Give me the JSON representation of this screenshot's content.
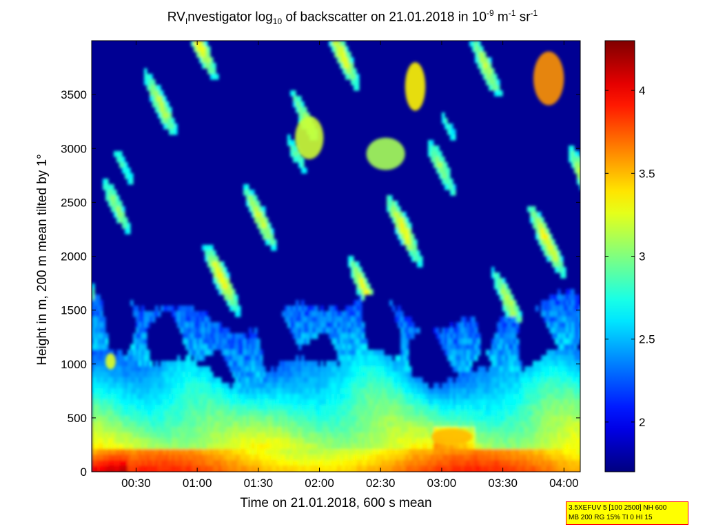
{
  "chart_data": {
    "type": "heatmap",
    "title": {
      "main": "RV",
      "sub1": "I",
      "part2": "nvestigator log",
      "sub2": "10",
      "part3": " of backscatter on 21.01.2018 in 10",
      "sup1": "-9",
      "part4": " m",
      "sup2": "-1",
      "part5": " sr",
      "sup3": "-1"
    },
    "xlabel": "Time on 21.01.2018, 600 s mean",
    "ylabel": "Height in m, 200 m mean tilted by 1°",
    "x_ticks": [
      "00:30",
      "01:00",
      "01:30",
      "02:00",
      "02:30",
      "03:00",
      "03:30",
      "04:00"
    ],
    "x_tick_minutes": [
      30,
      60,
      90,
      120,
      150,
      180,
      210,
      240
    ],
    "x_range_minutes": [
      8.2,
      248
    ],
    "y_ticks": [
      0,
      500,
      1000,
      1500,
      2000,
      2500,
      3000,
      3500
    ],
    "y_range": [
      0,
      4000
    ],
    "colorbar": {
      "ticks": [
        2,
        2.5,
        3,
        3.5,
        4
      ],
      "range": [
        1.7,
        4.3
      ],
      "colormap": "jet"
    },
    "layers": [
      {
        "name": "surface",
        "height_range": [
          0,
          250
        ],
        "value": 3.8
      },
      {
        "name": "boundary layer",
        "height_range": [
          250,
          1000
        ],
        "value": 2.9
      }
    ],
    "background_value": 1.75,
    "cloud_regions_minutes_height": [
      {
        "t": [
          162,
          172
        ],
        "h": [
          3350,
          3800
        ],
        "value": 3.35
      },
      {
        "t": [
          143,
          162
        ],
        "h": [
          2800,
          3100
        ],
        "value": 3.1
      },
      {
        "t": [
          225,
          240
        ],
        "h": [
          3400,
          3900
        ],
        "value": 3.6
      },
      {
        "t": [
          108,
          122
        ],
        "h": [
          2900,
          3300
        ],
        "value": 3.2
      },
      {
        "t": [
          15,
          20
        ],
        "h": [
          950,
          1100
        ],
        "value": 3.25
      },
      {
        "t": [
          175,
          195
        ],
        "h": [
          250,
          400
        ],
        "value": 3.5
      }
    ]
  },
  "infobox": {
    "line1": "3.5XEFUV 5 [100 2500] NH 600",
    "line2": "MB 200 RG 15% TI 0 HI 15"
  },
  "colors": {
    "frame": "#000000",
    "infobox_bg": "#ffff00",
    "infobox_border": "#ff0000"
  }
}
